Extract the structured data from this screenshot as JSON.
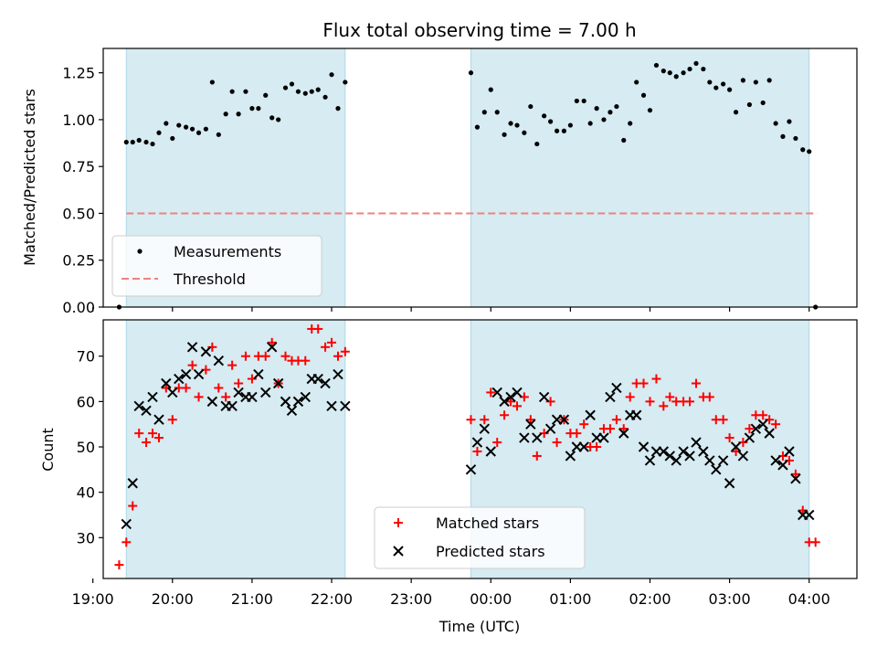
{
  "chart_data": [
    {
      "type": "scatter",
      "title": "Flux total observing time = 7.00 h",
      "ylabel": "Matched/Predicted stars",
      "xlabel": "",
      "xlim": [
        19.13,
        28.6
      ],
      "ylim": [
        0.0,
        1.38
      ],
      "x_ticks": [
        19,
        20,
        21,
        22,
        23,
        24,
        25,
        26,
        27,
        28
      ],
      "y_ticks": [
        0.0,
        0.25,
        0.5,
        0.75,
        1.0,
        1.25
      ],
      "y_tick_labels": [
        "0.00",
        "0.25",
        "0.50",
        "0.75",
        "1.00",
        "1.25"
      ],
      "shaded_intervals": [
        [
          19.42,
          22.17
        ],
        [
          23.75,
          28.0
        ]
      ],
      "legend_position": "lower-left",
      "series": [
        {
          "name": "Measurements",
          "marker": "dot",
          "color": "#000000",
          "x": [
            19.33,
            19.42,
            19.5,
            19.58,
            19.67,
            19.75,
            19.83,
            19.92,
            20.0,
            20.08,
            20.17,
            20.25,
            20.33,
            20.42,
            20.5,
            20.58,
            20.67,
            20.75,
            20.83,
            20.92,
            21.0,
            21.08,
            21.17,
            21.25,
            21.33,
            21.42,
            21.5,
            21.58,
            21.67,
            21.75,
            21.83,
            21.92,
            22.0,
            22.08,
            22.17,
            23.75,
            23.83,
            23.92,
            24.0,
            24.08,
            24.17,
            24.25,
            24.33,
            24.42,
            24.5,
            24.58,
            24.67,
            24.75,
            24.83,
            24.92,
            25.0,
            25.08,
            25.17,
            25.25,
            25.33,
            25.42,
            25.5,
            25.58,
            25.67,
            25.75,
            25.83,
            25.92,
            26.0,
            26.08,
            26.17,
            26.25,
            26.33,
            26.42,
            26.5,
            26.58,
            26.67,
            26.75,
            26.83,
            26.92,
            27.0,
            27.08,
            27.17,
            27.25,
            27.33,
            27.42,
            27.5,
            27.58,
            27.67,
            27.75,
            27.83,
            27.92,
            28.0,
            28.08
          ],
          "y": [
            0.0,
            0.88,
            0.88,
            0.89,
            0.88,
            0.87,
            0.93,
            0.98,
            0.9,
            0.97,
            0.96,
            0.95,
            0.93,
            0.95,
            1.2,
            0.92,
            1.03,
            1.15,
            1.03,
            1.15,
            1.06,
            1.06,
            1.13,
            1.01,
            1.0,
            1.17,
            1.19,
            1.15,
            1.14,
            1.15,
            1.16,
            1.12,
            1.24,
            1.06,
            1.2,
            1.25,
            0.96,
            1.04,
            1.16,
            1.04,
            0.92,
            0.98,
            0.97,
            0.93,
            1.07,
            0.87,
            1.02,
            0.99,
            0.94,
            0.94,
            0.97,
            1.1,
            1.1,
            0.98,
            1.06,
            1.0,
            1.04,
            1.07,
            0.89,
            0.98,
            1.2,
            1.13,
            1.05,
            1.29,
            1.26,
            1.25,
            1.23,
            1.25,
            1.27,
            1.3,
            1.27,
            1.2,
            1.17,
            1.19,
            1.16,
            1.04,
            1.21,
            1.08,
            1.2,
            1.09,
            1.21,
            0.98,
            0.91,
            0.99,
            0.9,
            0.84,
            0.83,
            0.0
          ]
        },
        {
          "name": "Threshold",
          "marker": "dashed-line",
          "color": "#f08080",
          "x": [
            19.42,
            28.1
          ],
          "y": [
            0.5,
            0.5
          ]
        }
      ]
    },
    {
      "type": "scatter",
      "title": "",
      "ylabel": "Count",
      "xlabel": "Time (UTC)",
      "xlim": [
        19.13,
        28.6
      ],
      "ylim": [
        21,
        78
      ],
      "x_ticks": [
        19,
        20,
        21,
        22,
        23,
        24,
        25,
        26,
        27,
        28
      ],
      "x_tick_labels": [
        "19:00",
        "20:00",
        "21:00",
        "22:00",
        "23:00",
        "00:00",
        "01:00",
        "02:00",
        "03:00",
        "04:00"
      ],
      "y_ticks": [
        30,
        40,
        50,
        60,
        70
      ],
      "y_tick_labels": [
        "30",
        "40",
        "50",
        "60",
        "70"
      ],
      "shaded_intervals": [
        [
          19.42,
          22.17
        ],
        [
          23.75,
          28.0
        ]
      ],
      "legend_position": "lower-center",
      "series": [
        {
          "name": "Matched stars",
          "marker": "plus",
          "color": "#ff0000",
          "x": [
            19.33,
            19.42,
            19.5,
            19.58,
            19.67,
            19.75,
            19.83,
            19.92,
            20.0,
            20.08,
            20.17,
            20.25,
            20.33,
            20.42,
            20.5,
            20.58,
            20.67,
            20.75,
            20.83,
            20.92,
            21.0,
            21.08,
            21.17,
            21.25,
            21.33,
            21.42,
            21.5,
            21.58,
            21.67,
            21.75,
            21.83,
            21.92,
            22.0,
            22.08,
            22.17,
            23.75,
            23.83,
            23.92,
            24.0,
            24.08,
            24.17,
            24.25,
            24.33,
            24.42,
            24.5,
            24.58,
            24.67,
            24.75,
            24.83,
            24.92,
            25.0,
            25.08,
            25.17,
            25.25,
            25.33,
            25.42,
            25.5,
            25.58,
            25.67,
            25.75,
            25.83,
            25.92,
            26.0,
            26.08,
            26.17,
            26.25,
            26.33,
            26.42,
            26.5,
            26.58,
            26.67,
            26.75,
            26.83,
            26.92,
            27.0,
            27.08,
            27.17,
            27.25,
            27.33,
            27.42,
            27.5,
            27.58,
            27.67,
            27.75,
            27.83,
            27.92,
            28.0,
            28.08
          ],
          "y": [
            24,
            29,
            37,
            53,
            51,
            53,
            52,
            63,
            56,
            63,
            63,
            68,
            61,
            67,
            72,
            63,
            61,
            68,
            64,
            70,
            65,
            70,
            70,
            73,
            64,
            70,
            69,
            69,
            69,
            76,
            76,
            72,
            73,
            70,
            71,
            56,
            49,
            56,
            62,
            51,
            57,
            60,
            59,
            61,
            56,
            48,
            53,
            60,
            51,
            56,
            53,
            53,
            55,
            50,
            50,
            54,
            54,
            56,
            54,
            61,
            64,
            64,
            60,
            65,
            59,
            61,
            60,
            60,
            60,
            64,
            61,
            61,
            56,
            56,
            52,
            49,
            51,
            54,
            57,
            57,
            56,
            55,
            48,
            47,
            44,
            36,
            29,
            29
          ]
        },
        {
          "name": "Predicted stars",
          "marker": "x",
          "color": "#000000",
          "x": [
            19.42,
            19.5,
            19.58,
            19.67,
            19.75,
            19.83,
            19.92,
            20.0,
            20.08,
            20.17,
            20.25,
            20.33,
            20.42,
            20.5,
            20.58,
            20.67,
            20.75,
            20.83,
            20.92,
            21.0,
            21.08,
            21.17,
            21.25,
            21.33,
            21.42,
            21.5,
            21.58,
            21.67,
            21.75,
            21.83,
            21.92,
            22.0,
            22.08,
            22.17,
            23.75,
            23.83,
            23.92,
            24.0,
            24.08,
            24.17,
            24.25,
            24.33,
            24.42,
            24.5,
            24.58,
            24.67,
            24.75,
            24.83,
            24.92,
            25.0,
            25.08,
            25.17,
            25.25,
            25.33,
            25.42,
            25.5,
            25.58,
            25.67,
            25.75,
            25.83,
            25.92,
            26.0,
            26.08,
            26.17,
            26.25,
            26.33,
            26.42,
            26.5,
            26.58,
            26.67,
            26.75,
            26.83,
            26.92,
            27.0,
            27.08,
            27.17,
            27.25,
            27.33,
            27.42,
            27.5,
            27.58,
            27.67,
            27.75,
            27.83,
            27.92,
            28.0
          ],
          "y": [
            33,
            42,
            59,
            58,
            61,
            56,
            64,
            62,
            65,
            66,
            72,
            66,
            71,
            60,
            69,
            59,
            59,
            62,
            61,
            61,
            66,
            62,
            72,
            64,
            60,
            58,
            60,
            61,
            65,
            65,
            64,
            59,
            66,
            59,
            45,
            51,
            54,
            49,
            62,
            60,
            61,
            62,
            52,
            55,
            52,
            61,
            54,
            56,
            56,
            48,
            50,
            50,
            57,
            52,
            52,
            61,
            63,
            53,
            57,
            57,
            50,
            47,
            49,
            49,
            48,
            47,
            49,
            48,
            51,
            49,
            47,
            45,
            47,
            42,
            50,
            48,
            52,
            54,
            55,
            53,
            47,
            46,
            49,
            43,
            35,
            35
          ]
        }
      ]
    }
  ]
}
